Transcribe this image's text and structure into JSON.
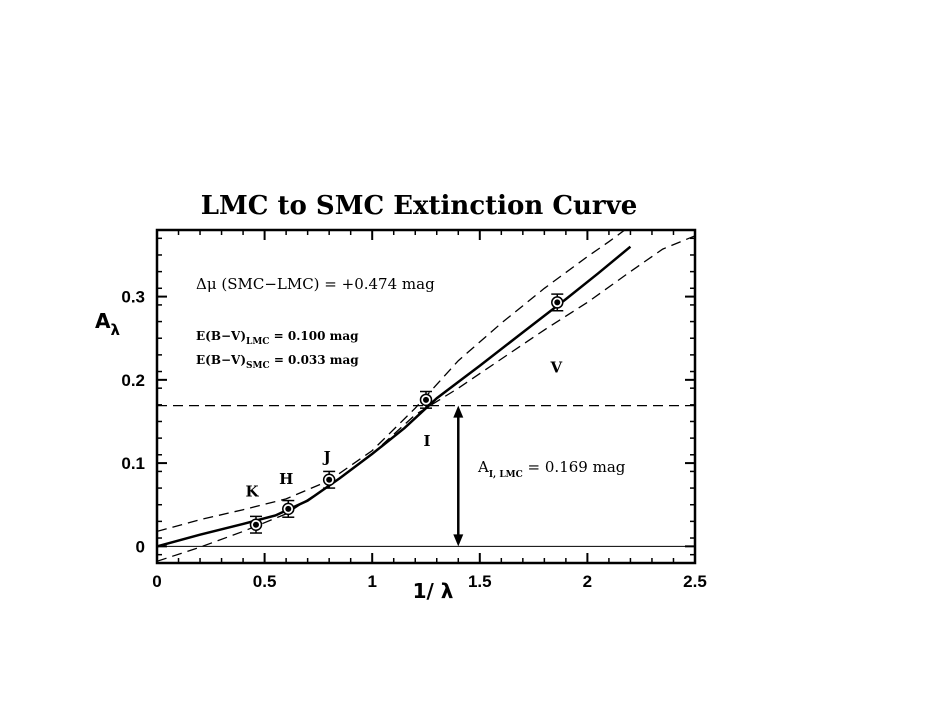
{
  "chart_data": {
    "type": "line",
    "title": "LMC to SMC Extinction Curve",
    "xlabel": "1/ λ",
    "ylabel": "A",
    "ylabel_sub": "λ",
    "xlim": [
      0,
      2.5
    ],
    "ylim": [
      -0.02,
      0.38
    ],
    "x_ticks": [
      0,
      0.5,
      1,
      1.5,
      2,
      2.5
    ],
    "x_tick_labels": [
      "0",
      "0.5",
      "1",
      "1.5",
      "2",
      "2.5"
    ],
    "y_ticks": [
      0,
      0.1,
      0.2,
      0.3
    ],
    "y_tick_labels": [
      "0",
      "0.1",
      "0.2",
      "0.3"
    ],
    "grid": false,
    "series": [
      {
        "style": "solid",
        "x": [
          0,
          0.2,
          0.4,
          0.55,
          0.7,
          0.85,
          1.0,
          1.15,
          1.3,
          1.5,
          1.7,
          1.9,
          2.05,
          2.2
        ],
        "y": [
          0,
          0.014,
          0.027,
          0.037,
          0.055,
          0.082,
          0.111,
          0.142,
          0.178,
          0.217,
          0.257,
          0.297,
          0.328,
          0.36
        ]
      },
      {
        "style": "dashed",
        "x": [
          0,
          0.2,
          0.4,
          0.6,
          0.8,
          1.0,
          1.2,
          1.4,
          1.6,
          1.8,
          2.0,
          2.1,
          2.2
        ],
        "y": [
          0.018,
          0.032,
          0.044,
          0.057,
          0.079,
          0.115,
          0.166,
          0.223,
          0.268,
          0.31,
          0.348,
          0.366,
          0.385
        ]
      },
      {
        "style": "dashed",
        "x": [
          0,
          0.2,
          0.4,
          0.6,
          0.8,
          1.0,
          1.2,
          1.4,
          1.6,
          1.8,
          2.0,
          2.2,
          2.35,
          2.5
        ],
        "y": [
          -0.018,
          -0.001,
          0.018,
          0.039,
          0.073,
          0.111,
          0.158,
          0.19,
          0.225,
          0.26,
          0.293,
          0.33,
          0.357,
          0.373
        ]
      }
    ],
    "points": [
      {
        "label": "K",
        "x": 0.46,
        "y": 0.026,
        "err": 0.01
      },
      {
        "label": "H",
        "x": 0.61,
        "y": 0.045,
        "err": 0.01
      },
      {
        "label": "J",
        "x": 0.8,
        "y": 0.08,
        "err": 0.01
      },
      {
        "label": "I",
        "x": 1.25,
        "y": 0.176,
        "err": 0.01
      },
      {
        "label": "V",
        "x": 1.86,
        "y": 0.293,
        "err": 0.01
      }
    ],
    "hline_dashed": 0.169,
    "hline_solid": 0,
    "arrow": {
      "x": 1.4,
      "y_from": 0,
      "y_to": 0.169
    },
    "annotations": {
      "delta_mu": "Δμ (SMC−LMC) = +0.474 mag",
      "ebv_lmc_main": "E(B−V)",
      "ebv_lmc_sub": "LMC",
      "ebv_lmc_val": " = 0.100 mag",
      "ebv_smc_main": "E(B−V)",
      "ebv_smc_sub": "SMC",
      "ebv_smc_val": " = 0.033 mag",
      "ai_main": "A",
      "ai_sub": "I, LMC",
      "ai_val": "  = 0.169 mag"
    }
  }
}
